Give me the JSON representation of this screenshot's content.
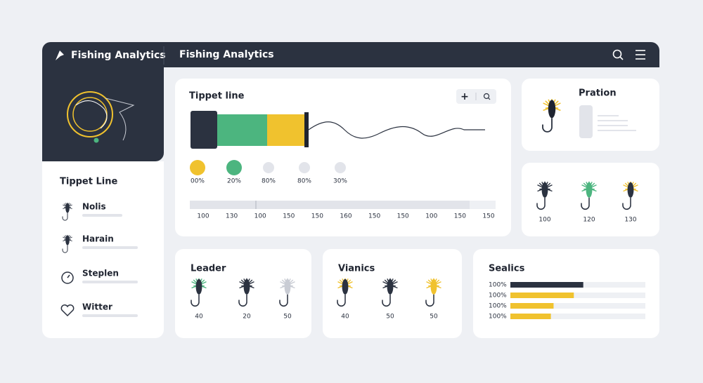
{
  "header": {
    "brand": "Fishing Analytics",
    "title": "Fishing Analytics"
  },
  "sidebar": {
    "title": "Tippet Line",
    "items": [
      "Nolis",
      "Harain",
      "Steplen",
      "Witter"
    ]
  },
  "tippet": {
    "title": "Tippet line",
    "dots": [
      {
        "label": "00%",
        "color": "#f0c22e"
      },
      {
        "label": "20%",
        "color": "#4cb57f"
      },
      {
        "label": "80%",
        "color": "#e2e4ea"
      },
      {
        "label": "80%",
        "color": "#e2e4ea"
      },
      {
        "label": "30%",
        "color": "#e2e4ea"
      }
    ],
    "scale": [
      "100",
      "130",
      "100",
      "150",
      "150",
      "160",
      "150",
      "150",
      "100",
      "150",
      "150"
    ]
  },
  "pration": {
    "title": "Pration"
  },
  "flies": {
    "labels": [
      "100",
      "120",
      "130"
    ]
  },
  "leader": {
    "title": "Leader",
    "labels": [
      "40",
      "20",
      "50"
    ]
  },
  "vianics": {
    "title": "Vianics",
    "labels": [
      "40",
      "50",
      "50"
    ]
  },
  "sealics": {
    "title": "Sealics",
    "rows": [
      {
        "label": "100%",
        "fill": 54,
        "color": "#2b3240"
      },
      {
        "label": "100%",
        "fill": 47,
        "color": "#f0c22e"
      },
      {
        "label": "100%",
        "fill": 32,
        "color": "#f0c22e"
      },
      {
        "label": "100%",
        "fill": 30,
        "color": "#f0c22e"
      }
    ]
  }
}
